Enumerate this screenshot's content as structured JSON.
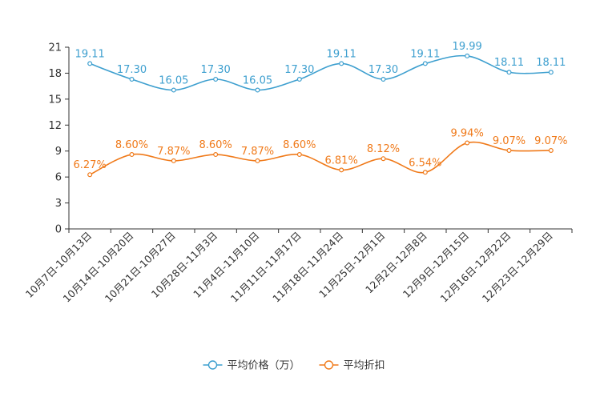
{
  "chart_data": {
    "type": "line",
    "title": "",
    "xlabel": "",
    "ylabel": "",
    "ylim": [
      0,
      21
    ],
    "yticks": [
      "0",
      "3",
      "6",
      "9",
      "12",
      "15",
      "18",
      "21"
    ],
    "categories": [
      "10月7日-10月13日",
      "10月14日-10月20日",
      "10月21日-10月27日",
      "10月28日-11月3日",
      "11月4日-11月10日",
      "11月11日-11月17日",
      "11月18日-11月24日",
      "11月25日-12月1日",
      "12月2日-12月8日",
      "12月9日-12月15日",
      "12月16日-12月22日",
      "12月23日-12月29日"
    ],
    "series": [
      {
        "name": "平均价格（万）",
        "color": "#3d9fcf",
        "values": [
          19.11,
          17.3,
          16.05,
          17.3,
          16.05,
          17.3,
          19.11,
          17.3,
          19.11,
          19.99,
          18.11,
          18.11
        ],
        "labels": [
          "19.11",
          "17.30",
          "16.05",
          "17.30",
          "16.05",
          "17.30",
          "19.11",
          "17.30",
          "19.11",
          "19.99",
          "18.11",
          "18.11"
        ]
      },
      {
        "name": "平均折扣",
        "color": "#f07a1a",
        "values": [
          6.27,
          8.6,
          7.87,
          8.6,
          7.87,
          8.6,
          6.81,
          8.12,
          6.54,
          9.94,
          9.07,
          9.07
        ],
        "labels": [
          "6.27%",
          "8.60%",
          "7.87%",
          "8.60%",
          "7.87%",
          "8.60%",
          "6.81%",
          "8.12%",
          "6.54%",
          "9.94%",
          "9.07%",
          "9.07%"
        ]
      }
    ],
    "legend": "bottom-center"
  }
}
